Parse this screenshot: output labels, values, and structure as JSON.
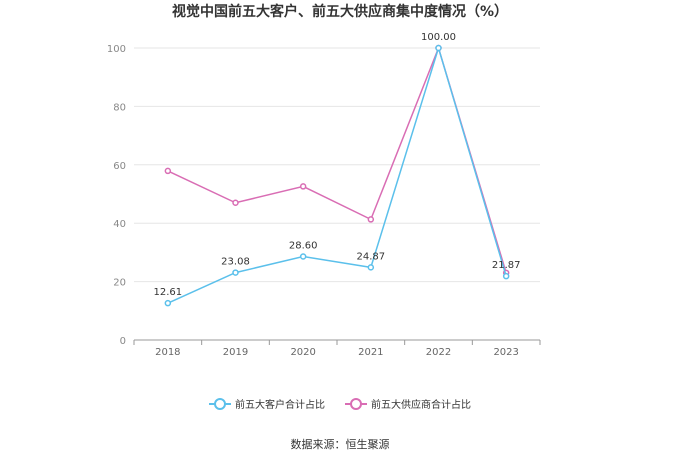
{
  "title": "视觉中国前五大客户、前五大供应商集中度情况（%）",
  "source": "数据来源：恒生聚源",
  "chart_data": {
    "type": "line",
    "categories": [
      "2018",
      "2019",
      "2020",
      "2021",
      "2022",
      "2023"
    ],
    "ylim": [
      0,
      100
    ],
    "yticks": [
      0,
      20,
      40,
      60,
      80,
      100
    ],
    "grid": true,
    "legend_position": "bottom",
    "series": [
      {
        "name": "前五大客户合计占比",
        "color": "#5bc0eb",
        "values": [
          12.61,
          23.08,
          28.6,
          24.87,
          100.0,
          21.87
        ],
        "labels": [
          "12.61",
          "23.08",
          "28.60",
          "24.87",
          "100.00",
          "21.87"
        ]
      },
      {
        "name": "前五大供应商合计占比",
        "color": "#d96db4",
        "values": [
          57.9,
          47.0,
          52.6,
          41.3,
          100.0,
          23.0
        ]
      }
    ]
  }
}
